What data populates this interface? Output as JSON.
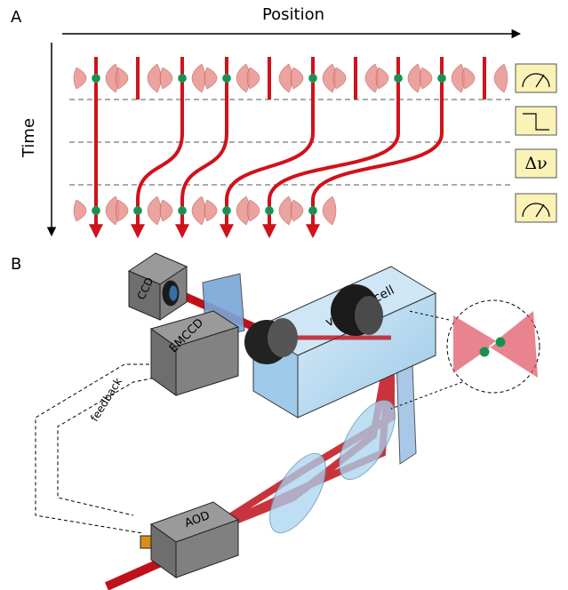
{
  "panel_a": {
    "label": "A",
    "x_axis": "Position",
    "y_axis": "Time",
    "frequency_box": "Δν"
  },
  "panel_b": {
    "label": "B",
    "ccd": "CCD",
    "emccd": "EMCCD",
    "vacuum_cell": "vacuum cell",
    "feedback": "feedback",
    "aod": "AOD"
  }
}
